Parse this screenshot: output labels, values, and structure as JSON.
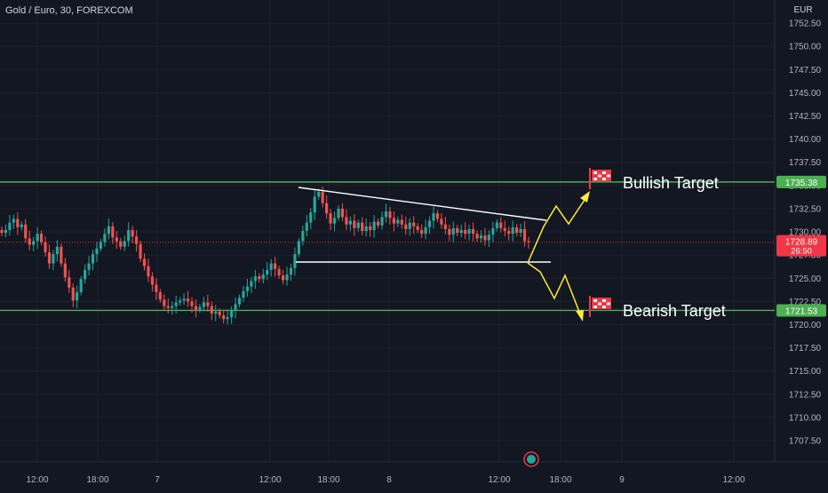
{
  "header": {
    "symbol_title": "Gold / Euro, 30, FOREXCOM"
  },
  "price_axis": {
    "currency": "EUR",
    "ticks": [
      "1752.50",
      "1750.00",
      "1747.50",
      "1745.00",
      "1742.50",
      "1740.00",
      "1737.50",
      "1735.00",
      "1732.50",
      "1730.00",
      "1727.50",
      "1725.00",
      "1722.50",
      "1720.00",
      "1717.50",
      "1715.00",
      "1712.50",
      "1710.00",
      "1707.50"
    ]
  },
  "time_axis": {
    "ticks": [
      "12:00",
      "18:00",
      "7",
      "12:00",
      "18:00",
      "8",
      "12:00",
      "18:00",
      "9",
      "12:00"
    ]
  },
  "levels": {
    "upper": {
      "label": "1735.38",
      "value": 1735.38,
      "color": "#4caf50"
    },
    "lower": {
      "label": "1721.53",
      "value": 1721.53,
      "color": "#4caf50"
    },
    "current": {
      "label": "1728.89",
      "countdown": "26:50",
      "value": 1728.89,
      "color": "#f23645"
    }
  },
  "annotations": {
    "bullish_label": "Bullish Target",
    "bearish_label": "Bearish Target",
    "flag_icon": "checkered-flag-icon",
    "path_color": "#ffeb3b",
    "pattern_color": "#ffffff"
  },
  "colors": {
    "background": "#131722",
    "up": "#26a69a",
    "down": "#ef5350",
    "text": "#d1d4dc"
  },
  "chart_data": {
    "type": "candlestick",
    "title": "Gold / Euro, 30, FOREXCOM",
    "ylabel": "EUR",
    "ylim": [
      1705.2,
      1755.0
    ],
    "x_ticks": [
      "12:00",
      "18:00",
      "7",
      "12:00",
      "18:00",
      "8",
      "12:00",
      "18:00",
      "9",
      "12:00"
    ],
    "y_ticks": [
      1752.5,
      1750,
      1747.5,
      1745,
      1742.5,
      1740,
      1737.5,
      1735,
      1732.5,
      1730,
      1727.5,
      1725,
      1722.5,
      1720,
      1717.5,
      1715,
      1712.5,
      1710,
      1707.5
    ],
    "horizontal_levels": [
      1735.38,
      1721.53
    ],
    "last_price": 1728.89,
    "closes": [
      1729.9,
      1730.2,
      1731.0,
      1731.4,
      1730.5,
      1730.8,
      1729.3,
      1728.6,
      1729.0,
      1729.8,
      1728.9,
      1727.8,
      1726.6,
      1727.6,
      1728.4,
      1726.6,
      1725.1,
      1724.0,
      1722.6,
      1723.5,
      1724.9,
      1725.9,
      1726.6,
      1727.6,
      1728.2,
      1728.9,
      1729.8,
      1730.6,
      1729.4,
      1729.0,
      1728.4,
      1729.0,
      1730.2,
      1729.5,
      1728.7,
      1727.1,
      1726.3,
      1725.2,
      1724.3,
      1723.5,
      1722.7,
      1722.0,
      1721.8,
      1722.0,
      1722.4,
      1722.6,
      1722.8,
      1722.5,
      1722.0,
      1721.6,
      1721.9,
      1722.4,
      1722.0,
      1721.2,
      1721.4,
      1721.0,
      1720.6,
      1720.8,
      1721.5,
      1722.2,
      1722.9,
      1723.6,
      1724.1,
      1724.7,
      1725.2,
      1724.9,
      1725.4,
      1725.9,
      1726.6,
      1726.0,
      1725.3,
      1724.8,
      1725.4,
      1726.1,
      1727.6,
      1729.0,
      1730.1,
      1731.0,
      1732.1,
      1733.8,
      1734.3,
      1733.1,
      1732.0,
      1730.9,
      1731.5,
      1732.5,
      1731.6,
      1730.8,
      1731.2,
      1730.4,
      1731.0,
      1730.1,
      1730.6,
      1730.2,
      1731.1,
      1730.7,
      1731.6,
      1732.2,
      1731.5,
      1730.9,
      1731.3,
      1730.8,
      1730.3,
      1731.0,
      1730.6,
      1730.2,
      1729.8,
      1730.5,
      1731.2,
      1732.0,
      1731.4,
      1730.8,
      1730.3,
      1729.7,
      1730.4,
      1729.9,
      1730.2,
      1729.8,
      1730.3,
      1729.8,
      1729.3,
      1729.6,
      1729.1,
      1729.7,
      1730.4,
      1731.0,
      1730.4,
      1730.1,
      1729.8,
      1730.5,
      1729.9,
      1730.3,
      1729.0,
      1728.89
    ]
  }
}
